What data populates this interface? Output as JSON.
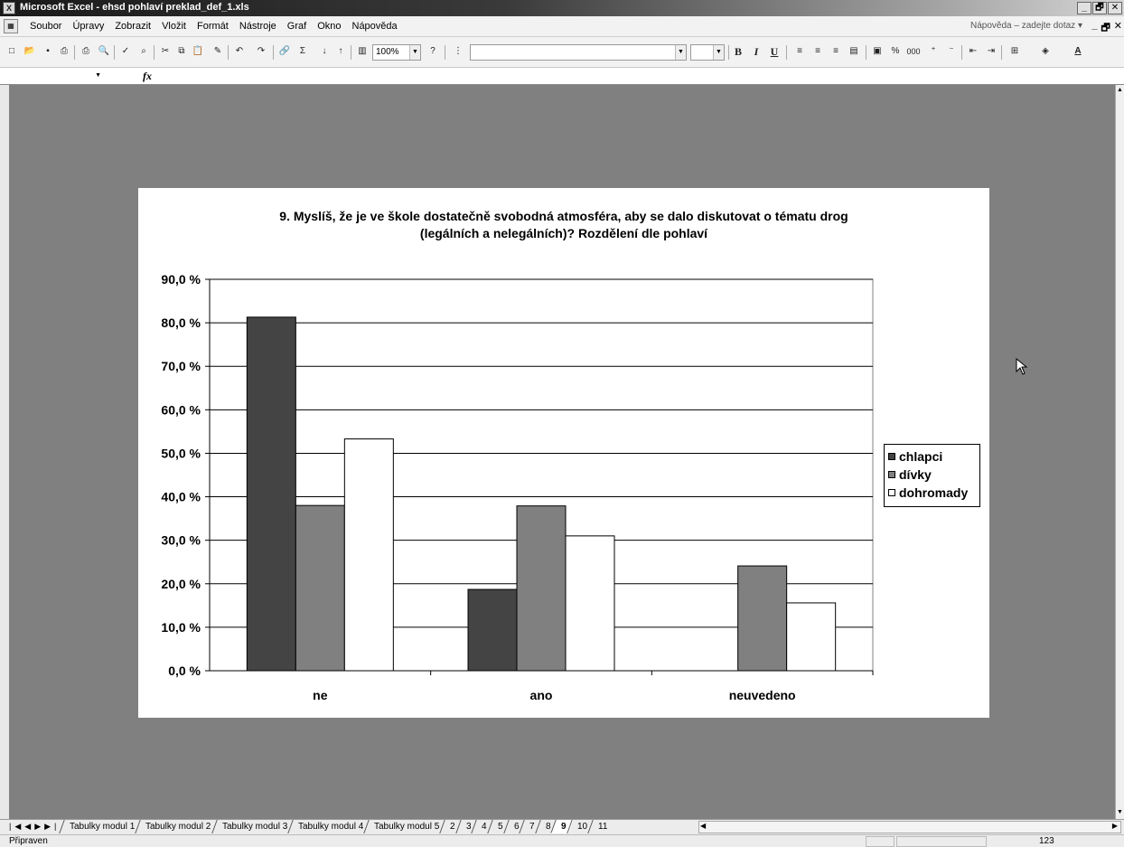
{
  "window": {
    "title": "Microsoft Excel - ehsd pohlaví preklad_def_1.xls",
    "app_icon": "excel-icon",
    "buttons": [
      "_",
      "🗗",
      "✕"
    ]
  },
  "menubar": {
    "items": [
      "Soubor",
      "Úpravy",
      "Zobrazit",
      "Vložit",
      "Formát",
      "Nástroje",
      "Graf",
      "Okno",
      "Nápověda"
    ],
    "help_box": "Nápověda – zadejte dotaz",
    "doc_buttons": [
      "_",
      "🗗",
      "✕"
    ]
  },
  "toolbar": {
    "zoom": "100%",
    "font_name": "",
    "font_size": "",
    "bold": "B",
    "italic": "I",
    "underline": "U",
    "percent": "%",
    "thousands": "000"
  },
  "formulabar": {
    "name_box": "",
    "fx_label": "fx"
  },
  "chart_data": {
    "type": "bar",
    "title": "9. Myslíš, že je ve škole dostatečně svobodná atmosféra, aby se dalo diskutovat o tématu drog (legálních a nelegálních)? Rozdělení dle pohlaví",
    "title_line1": "9. Myslíš, že je ve škole dostatečně svobodná atmosféra, aby se dalo diskutovat o tématu drog",
    "title_line2": "(legálních a nelegálních)? Rozdělení dle pohlaví",
    "categories": [
      "ne",
      "ano",
      "neuvedeno"
    ],
    "series": [
      {
        "name": "chlapci",
        "values": [
          81.3,
          18.7,
          0
        ],
        "color": "#444444"
      },
      {
        "name": "dívky",
        "values": [
          38.0,
          37.9,
          24.1
        ],
        "color": "#808080"
      },
      {
        "name": "dohromady",
        "values": [
          53.3,
          31.0,
          15.6
        ],
        "color": "#ffffff"
      }
    ],
    "ylim": [
      0,
      90
    ],
    "yticks": [
      "0,0 %",
      "10,0 %",
      "20,0 %",
      "30,0 %",
      "40,0 %",
      "50,0 %",
      "60,0 %",
      "70,0 %",
      "80,0 %",
      "90,0 %"
    ],
    "xlabel": "",
    "ylabel": "",
    "grid": true,
    "legend_position": "right"
  },
  "sheet_tabs": {
    "items": [
      "Tabulky modul 1",
      "Tabulky modul 2",
      "Tabulky modul 3",
      "Tabulky modul 4",
      "Tabulky modul 5",
      "2",
      "3",
      "4",
      "5",
      "6",
      "7",
      "8",
      "9",
      "10",
      "11"
    ],
    "active": "9"
  },
  "statusbar": {
    "status": "Připraven",
    "indicator": "123"
  }
}
